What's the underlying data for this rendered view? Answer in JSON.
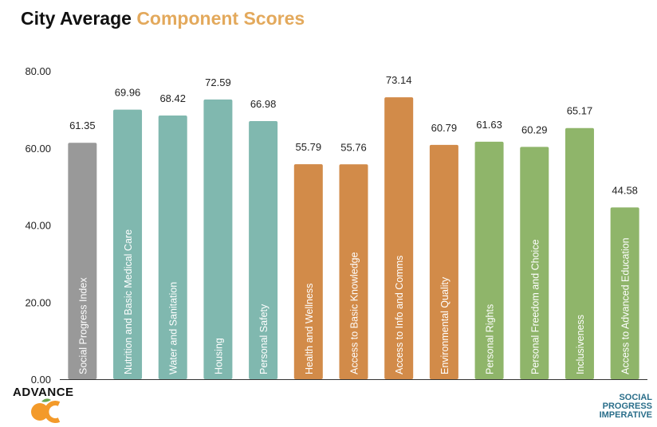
{
  "title": {
    "part1": "City Average ",
    "part2": "Component Scores"
  },
  "colors": {
    "gray": "#999999",
    "teal": "#80b8af",
    "orange": "#d28b49",
    "green": "#8fb56a",
    "title_accent": "#e3a95c",
    "logo_blue": "#2a6e8a"
  },
  "logos": {
    "left_text": "ADVANCE",
    "left_mark": "OC",
    "right_lines": [
      "SOCIAL",
      "PROGRESS",
      "IMPERATIVE"
    ]
  },
  "chart_data": {
    "type": "bar",
    "title": "City Average Component Scores",
    "ylim": [
      0,
      80
    ],
    "yticks": [
      "0.00",
      "20.00",
      "40.00",
      "60.00",
      "80.00"
    ],
    "grid": false,
    "categories": [
      "Social Progress Index",
      "Nutrition and Basic Medical Care",
      "Water and Sanitation",
      "Housing",
      "Personal Safety",
      "Health and Wellness",
      "Access to Basic Knowledge",
      "Access to Info and Comms",
      "Environmental Quality",
      "Personal Rights",
      "Personal Freedom and Choice",
      "Inclusiveness",
      "Access to Advanced Education"
    ],
    "values": [
      61.35,
      69.96,
      68.42,
      72.59,
      66.98,
      55.79,
      55.76,
      73.14,
      60.79,
      61.63,
      60.29,
      65.17,
      44.58
    ],
    "value_labels": [
      "61.35",
      "69.96",
      "68.42",
      "72.59",
      "66.98",
      "55.79",
      "55.76",
      "73.14",
      "60.79",
      "61.63",
      "60.29",
      "65.17",
      "44.58"
    ],
    "bar_colors": [
      "#999999",
      "#80b8af",
      "#80b8af",
      "#80b8af",
      "#80b8af",
      "#d28b49",
      "#d28b49",
      "#d28b49",
      "#d28b49",
      "#8fb56a",
      "#8fb56a",
      "#8fb56a",
      "#8fb56a"
    ]
  }
}
